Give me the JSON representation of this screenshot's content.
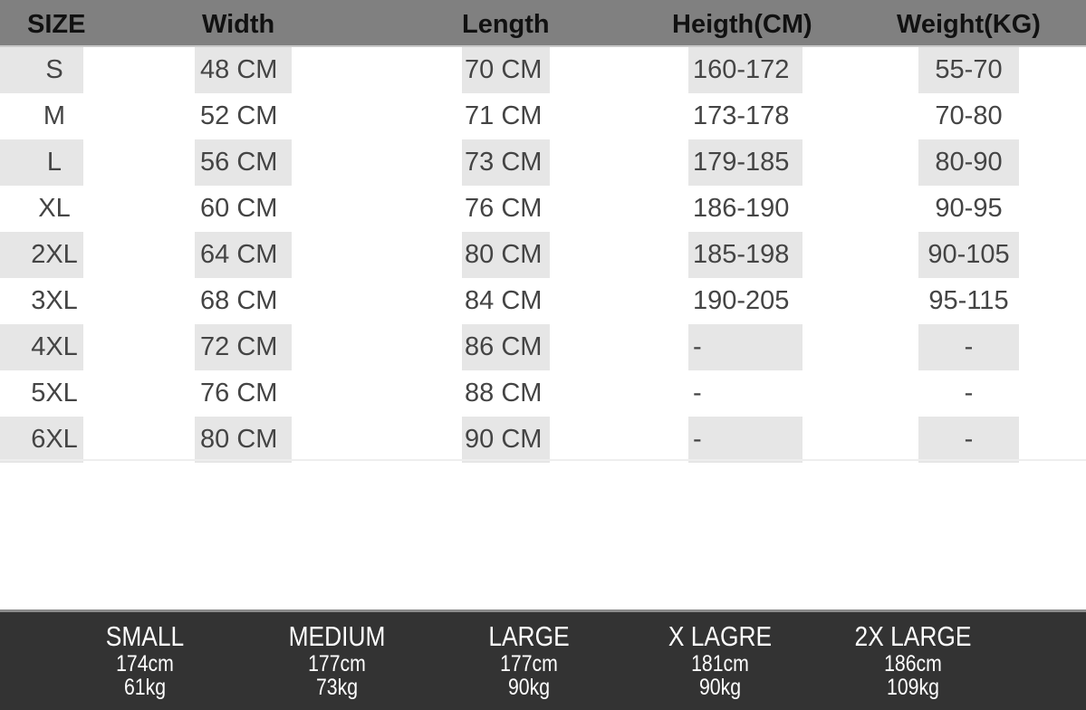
{
  "header": [
    "SIZE",
    "Width",
    "Length",
    "Heigth(CM)",
    "Weight(KG)"
  ],
  "rows": [
    [
      "S",
      "48 CM",
      "70 CM",
      "160-172",
      "55-70"
    ],
    [
      "M",
      "52 CM",
      "71 CM",
      "173-178",
      "70-80"
    ],
    [
      "L",
      "56 CM",
      "73 CM",
      "179-185",
      "80-90"
    ],
    [
      "XL",
      "60 CM",
      "76 CM",
      "186-190",
      "90-95"
    ],
    [
      "2XL",
      "64 CM",
      "80 CM",
      "185-198",
      "90-105"
    ],
    [
      "3XL",
      "68 CM",
      "84 CM",
      "190-205",
      "95-115"
    ],
    [
      "4XL",
      "72 CM",
      "86 CM",
      "-",
      "-"
    ],
    [
      "5XL",
      "76 CM",
      "88 CM",
      "-",
      "-"
    ],
    [
      "6XL",
      "80 CM",
      "90 CM",
      "-",
      "-"
    ]
  ],
  "footer": [
    {
      "label": "SMALL",
      "height": "174cm",
      "weight": "61kg"
    },
    {
      "label": "MEDIUM",
      "height": "177cm",
      "weight": "73kg"
    },
    {
      "label": "LARGE",
      "height": "177cm",
      "weight": "90kg"
    },
    {
      "label": "X LAGRE",
      "height": "181cm",
      "weight": "90kg"
    },
    {
      "label": "2X LARGE",
      "height": "186cm",
      "weight": "109kg"
    }
  ],
  "colors": {
    "header_bg": "#808080",
    "shade": "#e6e6e6",
    "footer_bg": "#333333"
  }
}
